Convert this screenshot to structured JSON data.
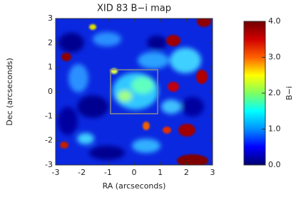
{
  "chart_data": {
    "type": "heatmap",
    "title": "XID 83 B−i map",
    "x_label": "RA (arcseconds)",
    "y_label": "Dec (arcseconds)",
    "xlim": [
      -3,
      3
    ],
    "ylim": [
      -3,
      3
    ],
    "xticks": [
      -3,
      -2,
      -1,
      0,
      1,
      2,
      3
    ],
    "yticks": [
      -3,
      -2,
      -1,
      0,
      1,
      2,
      3
    ],
    "box": {
      "x": [
        -0.9,
        0.9
      ],
      "y": [
        -0.9,
        0.9
      ],
      "color": "#8a8a8a"
    },
    "colorbar": {
      "label": "B−i",
      "lim": [
        0,
        4
      ],
      "ticks": [
        {
          "value": 0,
          "label": "0.0"
        },
        {
          "value": 1,
          "label": "1.0"
        },
        {
          "value": 2,
          "label": "2.0"
        },
        {
          "value": 3,
          "label": "3.0"
        },
        {
          "value": 4,
          "label": "4.0"
        }
      ],
      "colormap": [
        "#000070",
        "#0000ff",
        "#0090ff",
        "#00ffff",
        "#80ff60",
        "#ffff00",
        "#ff6000",
        "#d00000",
        "#700000"
      ]
    }
  }
}
